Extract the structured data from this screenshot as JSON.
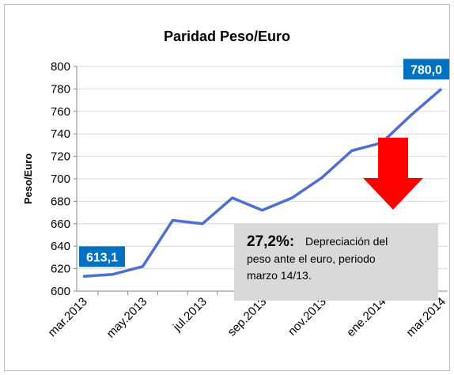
{
  "chart_data": {
    "type": "line",
    "title": "Paridad Peso/Euro",
    "y_label": "Peso/Euro",
    "categories": [
      "mar.2013",
      null,
      "may.2013",
      null,
      "jul.2013",
      null,
      "sep.2013",
      null,
      "nov.2013",
      null,
      "ene.2014",
      null,
      "mar.2014"
    ],
    "series": [
      {
        "name": "Peso/Euro",
        "color": "#4f6fcf",
        "values": [
          613.1,
          615,
          622,
          663,
          660,
          683,
          672,
          683,
          701,
          725,
          732,
          757,
          780.0
        ],
        "value_labels": [
          "613,1",
          null,
          null,
          null,
          null,
          null,
          null,
          null,
          null,
          null,
          null,
          null,
          "780,0"
        ]
      }
    ],
    "ylim": [
      600,
      800
    ],
    "yticks": [
      600,
      620,
      640,
      660,
      680,
      700,
      720,
      740,
      760,
      780,
      800
    ],
    "grid": true,
    "annotation": {
      "highlight": "27,2%:",
      "text_lines": [
        "Depreciación del",
        "peso ante el euro, periodo",
        "marzo 14/13."
      ]
    }
  }
}
